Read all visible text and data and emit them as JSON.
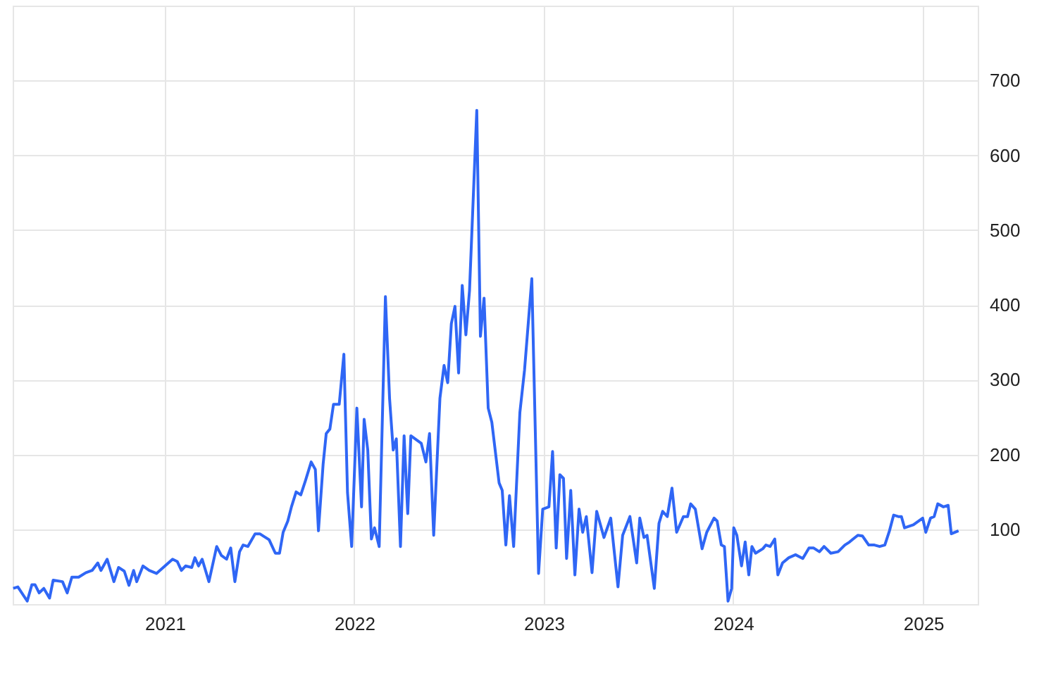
{
  "chart_data": {
    "type": "line",
    "x": [
      "2020-03-15",
      "2020-03-24",
      "2020-04-11",
      "2020-04-20",
      "2020-04-26",
      "2020-05-04",
      "2020-05-13",
      "2020-05-24",
      "2020-05-31",
      "2020-06-18",
      "2020-06-27",
      "2020-07-06",
      "2020-07-19",
      "2020-08-02",
      "2020-08-14",
      "2020-08-25",
      "2020-08-31",
      "2020-09-12",
      "2020-09-25",
      "2020-10-04",
      "2020-10-15",
      "2020-10-24",
      "2020-11-02",
      "2020-11-08",
      "2020-11-20",
      "2020-12-02",
      "2020-12-16",
      "2020-12-29",
      "2021-01-16",
      "2021-01-25",
      "2021-02-02",
      "2021-02-10",
      "2021-02-22",
      "2021-02-28",
      "2021-03-07",
      "2021-03-14",
      "2021-03-27",
      "2021-04-11",
      "2021-04-20",
      "2021-04-30",
      "2021-05-08",
      "2021-05-16",
      "2021-05-25",
      "2021-06-01",
      "2021-06-10",
      "2021-06-24",
      "2021-07-03",
      "2021-07-12",
      "2021-07-21",
      "2021-08-02",
      "2021-08-10",
      "2021-08-17",
      "2021-08-26",
      "2021-09-02",
      "2021-09-11",
      "2021-09-20",
      "2021-09-29",
      "2021-10-10",
      "2021-10-18",
      "2021-10-24",
      "2021-11-02",
      "2021-11-08",
      "2021-11-15",
      "2021-11-22",
      "2021-12-03",
      "2021-12-12",
      "2021-12-19",
      "2021-12-27",
      "2022-01-06",
      "2022-01-15",
      "2022-01-20",
      "2022-01-27",
      "2022-02-03",
      "2022-02-09",
      "2022-02-18",
      "2022-03-02",
      "2022-03-10",
      "2022-03-17",
      "2022-03-23",
      "2022-03-31",
      "2022-04-07",
      "2022-04-14",
      "2022-04-20",
      "2022-05-10",
      "2022-05-19",
      "2022-05-26",
      "2022-06-03",
      "2022-06-15",
      "2022-06-23",
      "2022-06-30",
      "2022-07-07",
      "2022-07-14",
      "2022-07-21",
      "2022-07-28",
      "2022-08-04",
      "2022-08-11",
      "2022-08-25",
      "2022-09-01",
      "2022-09-08",
      "2022-09-16",
      "2022-09-23",
      "2022-10-07",
      "2022-10-13",
      "2022-10-20",
      "2022-10-27",
      "2022-11-04",
      "2022-11-16",
      "2022-11-25",
      "2022-12-09",
      "2022-12-22",
      "2022-12-30",
      "2023-01-11",
      "2023-01-18",
      "2023-01-25",
      "2023-02-01",
      "2023-02-08",
      "2023-02-14",
      "2023-02-22",
      "2023-03-02",
      "2023-03-10",
      "2023-03-17",
      "2023-03-24",
      "2023-04-04",
      "2023-04-13",
      "2023-04-27",
      "2023-05-10",
      "2023-05-24",
      "2023-06-02",
      "2023-06-16",
      "2023-06-29",
      "2023-07-05",
      "2023-07-13",
      "2023-07-19",
      "2023-08-02",
      "2023-08-11",
      "2023-08-18",
      "2023-08-27",
      "2023-09-05",
      "2023-09-14",
      "2023-09-27",
      "2023-10-05",
      "2023-10-11",
      "2023-10-20",
      "2023-11-02",
      "2023-11-11",
      "2023-11-25",
      "2023-12-01",
      "2023-12-09",
      "2023-12-15",
      "2023-12-22",
      "2023-12-29",
      "2024-01-02",
      "2024-01-08",
      "2024-01-17",
      "2024-01-24",
      "2024-01-31",
      "2024-02-06",
      "2024-02-13",
      "2024-02-27",
      "2024-03-04",
      "2024-03-12",
      "2024-03-21",
      "2024-03-27",
      "2024-04-05",
      "2024-04-17",
      "2024-04-30",
      "2024-05-14",
      "2024-05-26",
      "2024-06-04",
      "2024-06-15",
      "2024-06-24",
      "2024-07-07",
      "2024-07-21",
      "2024-08-03",
      "2024-08-12",
      "2024-08-19",
      "2024-08-28",
      "2024-09-06",
      "2024-09-18",
      "2024-09-29",
      "2024-10-09",
      "2024-10-19",
      "2024-10-28",
      "2024-11-05",
      "2024-11-14",
      "2024-11-20",
      "2024-11-26",
      "2024-12-13",
      "2024-12-31",
      "2025-01-06",
      "2025-01-15",
      "2025-01-22",
      "2025-01-29",
      "2025-02-09",
      "2025-02-18",
      "2025-02-24",
      "2025-03-10"
    ],
    "series": [
      {
        "color": "#2f66f5",
        "values": [
          21,
          23,
          4,
          26,
          26,
          15,
          21,
          8,
          32,
          30,
          15,
          36,
          36,
          42,
          45,
          55,
          45,
          60,
          30,
          49,
          44,
          25,
          45,
          30,
          51,
          45,
          41,
          49,
          60,
          57,
          45,
          51,
          49,
          62,
          51,
          60,
          30,
          77,
          65,
          60,
          75,
          30,
          70,
          79,
          77,
          94,
          94,
          90,
          86,
          68,
          68,
          96,
          111,
          130,
          150,
          146,
          165,
          190,
          180,
          98,
          187,
          228,
          234,
          267,
          267,
          334,
          149,
          77,
          262,
          130,
          247,
          206,
          87,
          102,
          77,
          411,
          275,
          206,
          221,
          77,
          225,
          121,
          225,
          215,
          190,
          228,
          92,
          275,
          319,
          296,
          375,
          398,
          309,
          426,
          360,
          419,
          660,
          358,
          409,
          262,
          243,
          162,
          152,
          79,
          145,
          77,
          256,
          313,
          435,
          41,
          127,
          130,
          204,
          75,
          173,
          168,
          61,
          152,
          39,
          127,
          96,
          117,
          42,
          124,
          89,
          115,
          23,
          92,
          117,
          55,
          115,
          89,
          92,
          21,
          108,
          124,
          117,
          155,
          96,
          117,
          117,
          134,
          127,
          74,
          96,
          115,
          111,
          79,
          77,
          4,
          21,
          102,
          92,
          51,
          83,
          39,
          77,
          68,
          74,
          79,
          77,
          87,
          39,
          55,
          62,
          66,
          61,
          75,
          75,
          70,
          77,
          68,
          70,
          79,
          83,
          87,
          92,
          91,
          79,
          79,
          77,
          79,
          98,
          119,
          117,
          117,
          102,
          106,
          115,
          96,
          115,
          117,
          134,
          130,
          132,
          94,
          98
        ]
      }
    ],
    "xlim": [
      "2020-03-14",
      "2025-04-16"
    ],
    "xticks": [
      "2021",
      "2022",
      "2023",
      "2024",
      "2025"
    ],
    "ylim": [
      0,
      800
    ],
    "yticks": [
      100,
      200,
      300,
      400,
      500,
      600,
      700
    ],
    "grid": true,
    "line_style": "solid"
  }
}
